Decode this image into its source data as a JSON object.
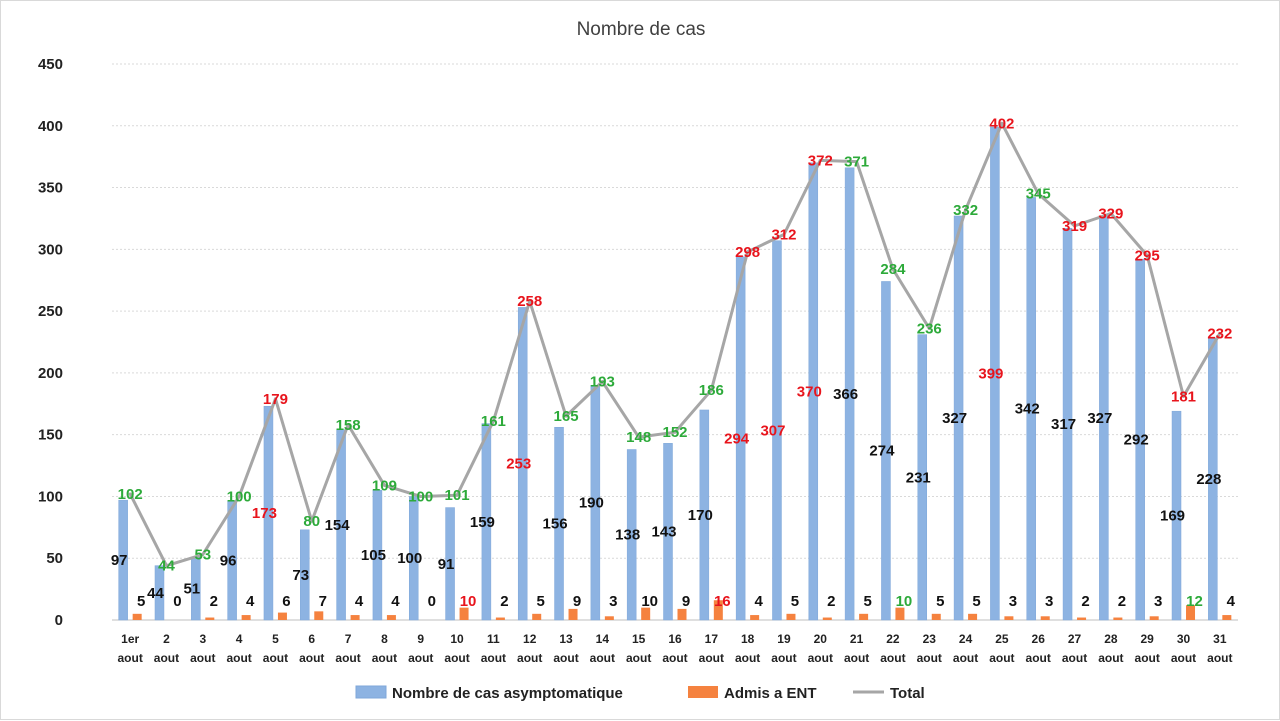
{
  "chart_data": {
    "type": "bar",
    "title": "Nombre de cas",
    "xlabel": "",
    "ylabel": "",
    "ylim": [
      0,
      450
    ],
    "yticks": [
      0,
      50,
      100,
      150,
      200,
      250,
      300,
      350,
      400,
      450
    ],
    "grid": true,
    "legend_position": "bottom",
    "categories": [
      [
        "1er",
        "aout"
      ],
      [
        "2",
        "aout"
      ],
      [
        "3",
        "aout"
      ],
      [
        "4",
        "aout"
      ],
      [
        "5",
        "aout"
      ],
      [
        "6",
        "aout"
      ],
      [
        "7",
        "aout"
      ],
      [
        "8",
        "aout"
      ],
      [
        "9",
        "aout"
      ],
      [
        "10",
        "aout"
      ],
      [
        "11",
        "aout"
      ],
      [
        "12",
        "aout"
      ],
      [
        "13",
        "aout"
      ],
      [
        "14",
        "aout"
      ],
      [
        "15",
        "aout"
      ],
      [
        "16",
        "aout"
      ],
      [
        "17",
        "aout"
      ],
      [
        "18",
        "aout"
      ],
      [
        "19",
        "aout"
      ],
      [
        "20",
        "aout"
      ],
      [
        "21",
        "aout"
      ],
      [
        "22",
        "aout"
      ],
      [
        "23",
        "aout"
      ],
      [
        "24",
        "aout"
      ],
      [
        "25",
        "aout"
      ],
      [
        "26",
        "aout"
      ],
      [
        "27",
        "aout"
      ],
      [
        "28",
        "aout"
      ],
      [
        "29",
        "aout"
      ],
      [
        "30",
        "aout"
      ],
      [
        "31",
        "aout"
      ]
    ],
    "series": [
      {
        "name": "Nombre de cas asymptomatique",
        "kind": "bar",
        "color": "#8db3e2",
        "values": [
          97,
          44,
          51,
          96,
          173,
          73,
          154,
          105,
          100,
          91,
          159,
          253,
          156,
          190,
          138,
          143,
          170,
          294,
          307,
          370,
          366,
          274,
          231,
          327,
          399,
          342,
          317,
          327,
          292,
          169,
          228
        ],
        "label_colors": [
          "#111111",
          "#111111",
          "#111111",
          "#111111",
          "#e8141c",
          "#111111",
          "#111111",
          "#111111",
          "#111111",
          "#111111",
          "#111111",
          "#e8141c",
          "#111111",
          "#111111",
          "#111111",
          "#111111",
          "#111111",
          "#e8141c",
          "#e8141c",
          "#e8141c",
          "#111111",
          "#111111",
          "#111111",
          "#111111",
          "#e8141c",
          "#111111",
          "#111111",
          "#111111",
          "#111111",
          "#111111",
          "#111111"
        ]
      },
      {
        "name": "Admis a ENT",
        "kind": "bar",
        "color": "#f5823f",
        "values": [
          5,
          0,
          2,
          4,
          6,
          7,
          4,
          4,
          0,
          10,
          2,
          5,
          9,
          3,
          10,
          9,
          16,
          4,
          5,
          2,
          5,
          10,
          5,
          5,
          3,
          3,
          2,
          2,
          3,
          12,
          4
        ],
        "label_colors": [
          "#111111",
          "#111111",
          "#111111",
          "#111111",
          "#111111",
          "#111111",
          "#111111",
          "#111111",
          "#111111",
          "#e8141c",
          "#111111",
          "#111111",
          "#111111",
          "#111111",
          "#111111",
          "#111111",
          "#e8141c",
          "#111111",
          "#111111",
          "#111111",
          "#111111",
          "#2daa3a",
          "#111111",
          "#111111",
          "#111111",
          "#111111",
          "#111111",
          "#111111",
          "#111111",
          "#2daa3a",
          "#111111"
        ]
      },
      {
        "name": "Total",
        "kind": "line",
        "color": "#a6a6a6",
        "values": [
          102,
          44,
          53,
          100,
          179,
          80,
          158,
          109,
          100,
          101,
          161,
          258,
          165,
          193,
          148,
          152,
          186,
          298,
          312,
          372,
          371,
          284,
          236,
          332,
          402,
          345,
          319,
          329,
          295,
          181,
          232
        ],
        "label_colors": [
          "#2daa3a",
          "#2daa3a",
          "#2daa3a",
          "#2daa3a",
          "#e8141c",
          "#2daa3a",
          "#2daa3a",
          "#2daa3a",
          "#2daa3a",
          "#2daa3a",
          "#2daa3a",
          "#e8141c",
          "#2daa3a",
          "#2daa3a",
          "#2daa3a",
          "#2daa3a",
          "#2daa3a",
          "#e8141c",
          "#e8141c",
          "#e8141c",
          "#2daa3a",
          "#2daa3a",
          "#2daa3a",
          "#2daa3a",
          "#e8141c",
          "#2daa3a",
          "#e8141c",
          "#e8141c",
          "#e8141c",
          "#e8141c",
          "#e8141c"
        ]
      }
    ]
  }
}
